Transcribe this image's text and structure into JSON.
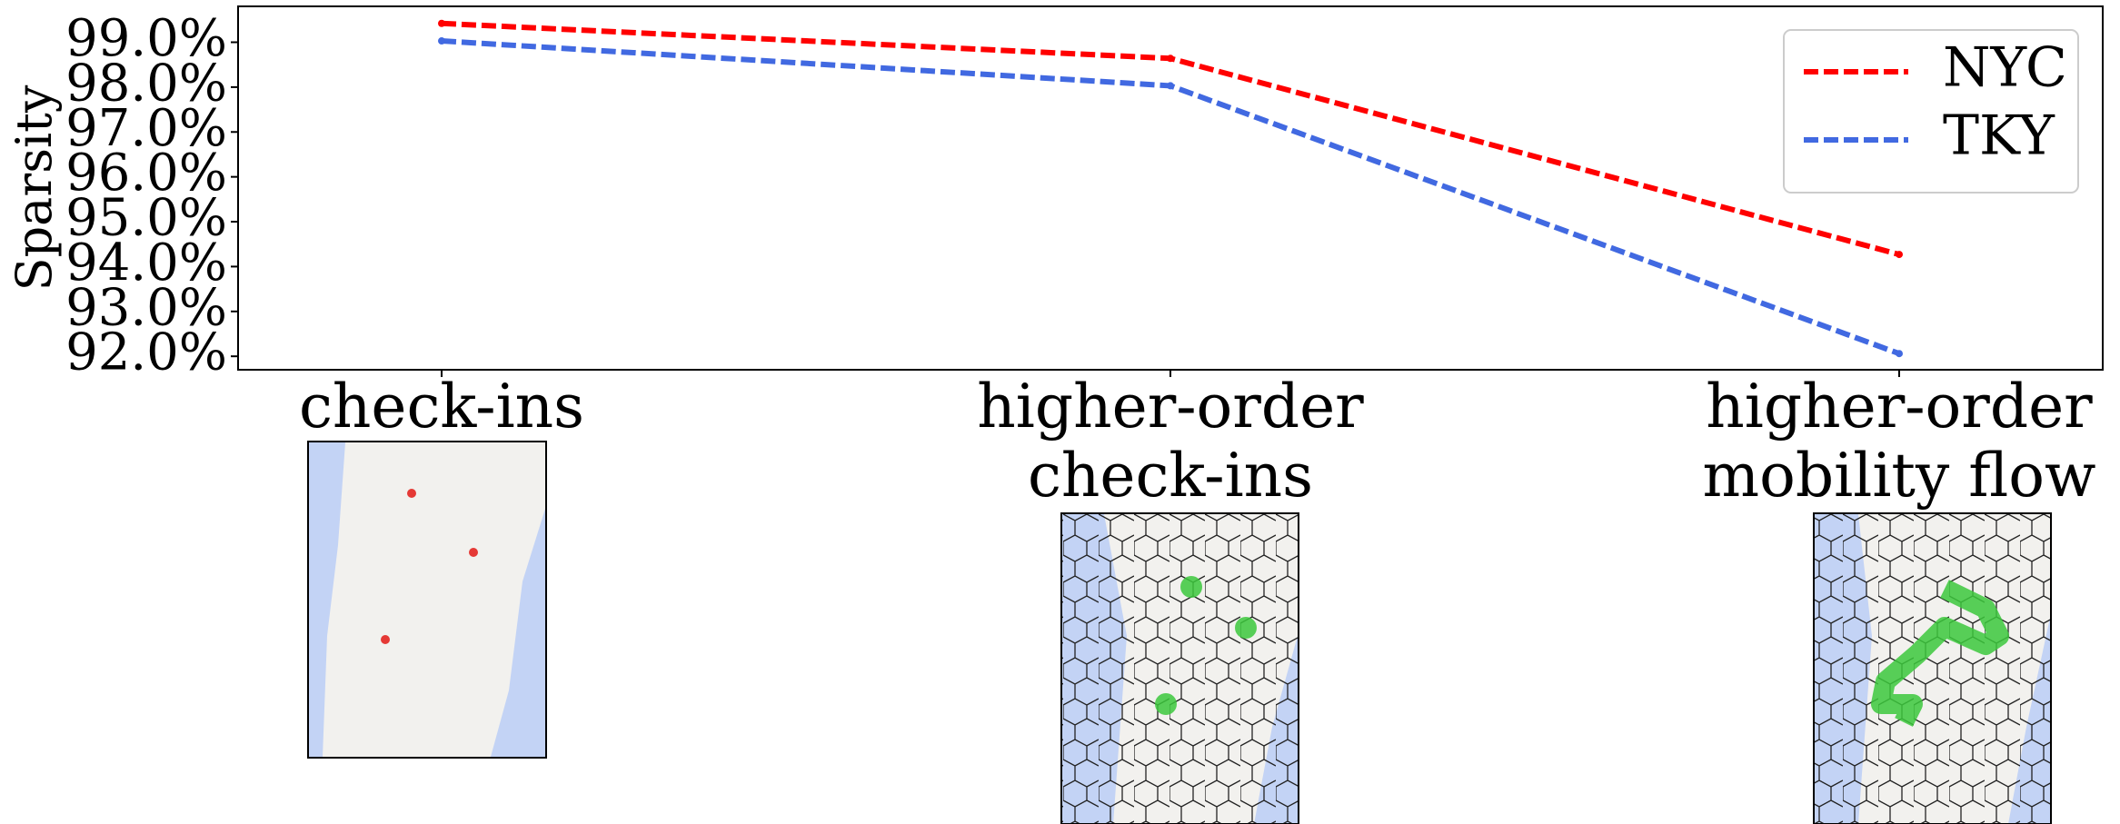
{
  "chart_data": {
    "type": "line",
    "y_label": "Sparsity",
    "categories": [
      "check-ins",
      "higher-order\ncheck-ins",
      "higher-order\nmobility flow"
    ],
    "series": [
      {
        "name": "NYC",
        "color": "#ff0000",
        "values": [
          99.42,
          98.64,
          94.27
        ]
      },
      {
        "name": "TKY",
        "color": "#4169e1",
        "values": [
          99.03,
          98.03,
          92.06
        ]
      }
    ],
    "ylim": [
      91.7,
      99.8
    ],
    "yticks": [
      {
        "value": 92,
        "label": "92.0%"
      },
      {
        "value": 93,
        "label": "93.0%"
      },
      {
        "value": 94,
        "label": "94.0%"
      },
      {
        "value": 95,
        "label": "95.0%"
      },
      {
        "value": 96,
        "label": "96.0%"
      },
      {
        "value": 97,
        "label": "97.0%"
      },
      {
        "value": 98,
        "label": "98.0%"
      },
      {
        "value": 99,
        "label": "99.0%"
      }
    ],
    "legend": "upper right"
  }
}
